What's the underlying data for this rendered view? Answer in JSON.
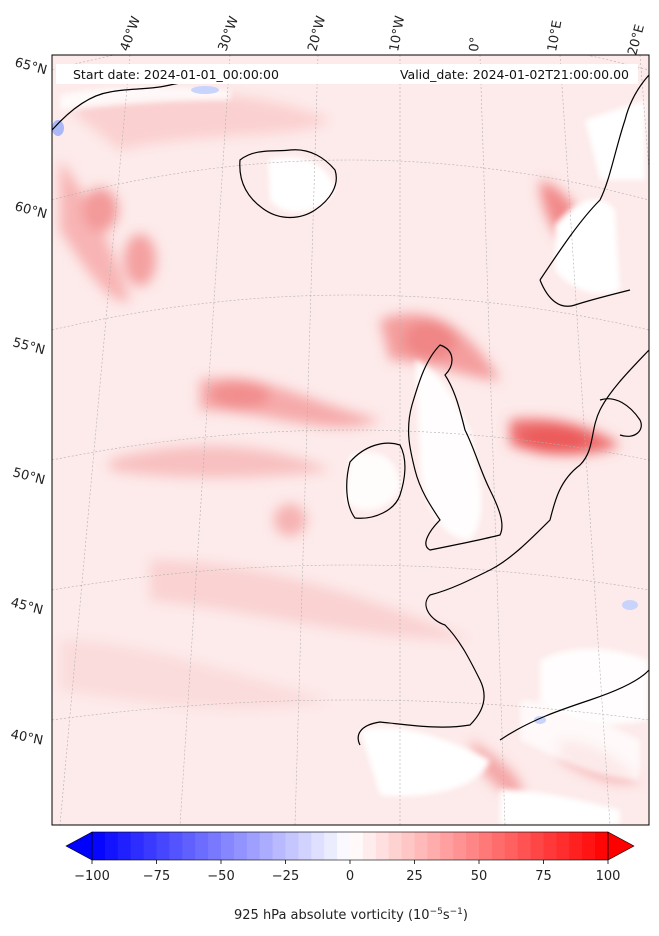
{
  "header": {
    "start_date": "Start date: 2024-01-01_00:00:00",
    "valid_date": "Valid_date: 2024-01-02T21:00:00.00"
  },
  "map": {
    "lon_labels": [
      "40°W",
      "30°W",
      "20°W",
      "10°W",
      "0°",
      "10°E",
      "20°E"
    ],
    "lat_labels": [
      "65°N",
      "60°N",
      "55°N",
      "50°N",
      "45°N",
      "40°N"
    ],
    "field": "925 hPa absolute vorticity",
    "colormap": "bwr",
    "background_level": 12
  },
  "colorbar": {
    "ticks": [
      "−100",
      "−75",
      "−50",
      "−25",
      "0",
      "25",
      "50",
      "75",
      "100"
    ],
    "min": -100,
    "max": 100,
    "step": 5,
    "extend": "both",
    "label": "925 hPa absolute vorticity (10",
    "label_unit": "−5",
    "label_s": "s",
    "label_exp": "−1",
    "label_close": ")"
  },
  "colors": {
    "negative": "#0000ff",
    "zero": "#ffffff",
    "positive": "#ff0000",
    "coastline": "#000000",
    "grid": "#b0b0b0"
  }
}
